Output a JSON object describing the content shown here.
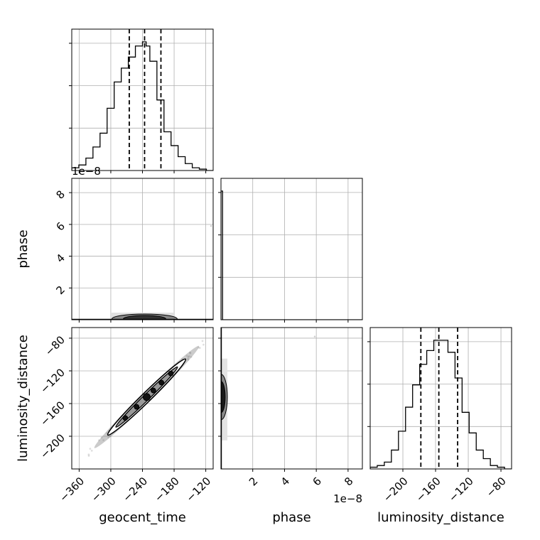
{
  "chart_data": {
    "type": "corner",
    "variables": [
      "geocent_time",
      "phase",
      "luminosity_distance"
    ],
    "x_labels": [
      "geocent_time",
      "phase",
      "luminosity_distance"
    ],
    "y_labels": [
      "",
      "phase",
      "luminosity_distance"
    ],
    "exponent_labels": {
      "phase_axis_left": "1e−8",
      "phase_axis_bottom": "1e−8"
    },
    "ranges": {
      "geocent_time": [
        -374,
        -106
      ],
      "phase": [
        0,
        8.9e-08
      ],
      "luminosity_distance": [
        -240,
        -67
      ]
    },
    "ticks": {
      "geocent_time": {
        "values": [
          -360,
          -300,
          -240,
          -180,
          -120
        ],
        "labels": [
          "−360",
          "−300",
          "−240",
          "−180",
          "−120"
        ]
      },
      "phase": {
        "values": [
          2e-08,
          4e-08,
          6e-08,
          8e-08
        ],
        "labels": [
          "2",
          "4",
          "6",
          "8"
        ]
      },
      "luminosity_distance": {
        "values": [
          -200,
          -160,
          -120,
          -80
        ],
        "labels": [
          "−200",
          "−160",
          "−120",
          "−80"
        ]
      }
    },
    "grid": true,
    "histograms": {
      "geocent_time": {
        "bins": [
          -374,
          -360.6,
          -347.2,
          -333.8,
          -320.4,
          -307,
          -293.6,
          -280.2,
          -266.8,
          -253.4,
          -240,
          -233,
          -226,
          -212.6,
          -199.2,
          -185.8,
          -172.4,
          -159,
          -145.6,
          -132.2,
          -118.8,
          -106
        ],
        "counts": [
          2,
          4,
          9,
          17,
          27,
          45,
          64,
          74,
          82,
          90,
          93,
          90,
          79,
          51,
          28,
          18,
          10,
          5,
          2,
          1,
          0
        ],
        "quantiles": [
          -265,
          -236,
          -205
        ]
      },
      "phase": {
        "bins": [
          0,
          1e-09,
          8.9e-08
        ],
        "counts": [
          100,
          0
        ],
        "quantiles": []
      },
      "luminosity_distance": {
        "bins": [
          -240,
          -231.35,
          -222.7,
          -214.05,
          -205.4,
          -196.75,
          -188.1,
          -179.45,
          -170.8,
          -162.15,
          -153.5,
          -144.85,
          -136.2,
          -127.55,
          -118.9,
          -110.25,
          -101.6,
          -92.95,
          -84.3,
          -75.65,
          -67
        ],
        "counts": [
          1,
          2,
          4,
          11,
          22,
          36,
          49,
          61,
          69,
          75,
          75,
          68,
          53,
          33,
          21,
          11,
          6,
          2,
          1,
          0
        ],
        "quantiles": [
          -178,
          -156,
          -133
        ]
      }
    },
    "correlations": {
      "geocent_time__luminosity_distance": {
        "mean": [
          -232,
          -152
        ],
        "slope": 0.63
      }
    }
  }
}
